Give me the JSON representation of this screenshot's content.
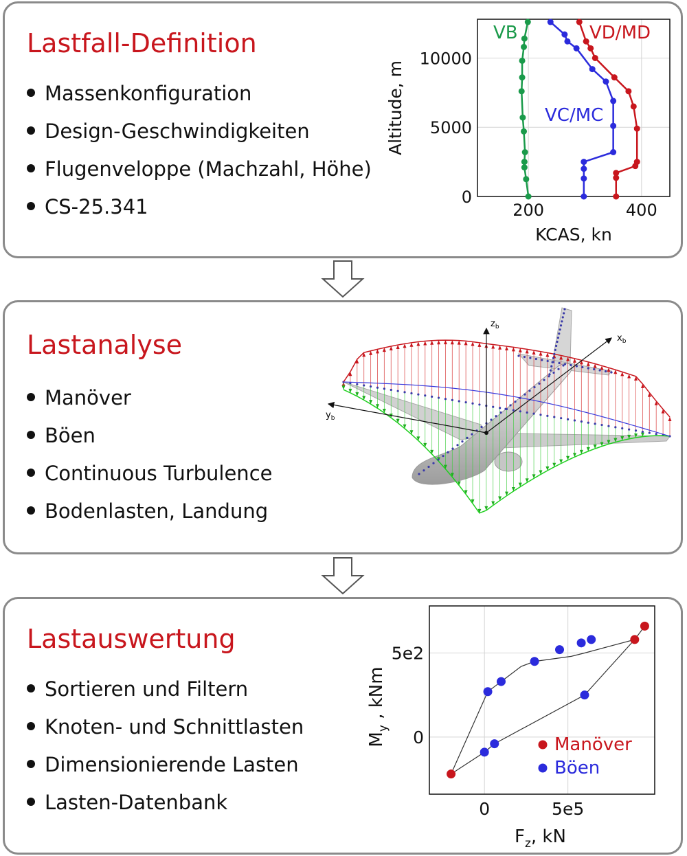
{
  "panels": [
    {
      "title": "Lastfall-Definition",
      "items": [
        "Massenkonfiguration",
        "Design-Geschwindigkeiten",
        "Flugenveloppe (Machzahl, Höhe)",
        "CS-25.341"
      ]
    },
    {
      "title": "Lastanalyse",
      "items": [
        "Manöver",
        "Böen",
        "Continuous Turbulence",
        "Bodenlasten, Landung"
      ]
    },
    {
      "title": "Lastauswertung",
      "items": [
        "Sortieren und Filtern",
        "Knoten- und Schnittlasten",
        "Dimensionierende Lasten",
        "Lasten-Datenbank"
      ]
    }
  ],
  "colors": {
    "title": "#c8161d",
    "green": "#1a9a4a",
    "blue": "#2b2bdc",
    "red": "#c8161d",
    "frame": "#8a8a8a"
  },
  "diagram_axes": {
    "x": "x",
    "x_sub": "b",
    "y": "y",
    "y_sub": "b",
    "z": "z",
    "z_sub": "b"
  },
  "chart_data": [
    {
      "type": "line",
      "xlabel": "KCAS, kn",
      "ylabel": "Altitude, m",
      "xlim": [
        110,
        450
      ],
      "ylim": [
        0,
        12800
      ],
      "xticks": [
        200,
        400
      ],
      "yticks": [
        0,
        5000,
        10000
      ],
      "grid": true,
      "series": [
        {
          "name": "VB",
          "color": "#1a9a4a",
          "points": [
            [
              200,
              0
            ],
            [
              196,
              1250
            ],
            [
              193,
              2100
            ],
            [
              193,
              2500
            ],
            [
              194,
              3200
            ],
            [
              192,
              4700
            ],
            [
              190,
              5700
            ],
            [
              188,
              7600
            ],
            [
              189,
              8600
            ],
            [
              189,
              9800
            ],
            [
              192,
              10800
            ],
            [
              193,
              11400
            ],
            [
              199,
              12600
            ]
          ]
        },
        {
          "name": "VC/MC",
          "color": "#2b2bdc",
          "points": [
            [
              298,
              0
            ],
            [
              298,
              1300
            ],
            [
              298,
              2000
            ],
            [
              298,
              2500
            ],
            [
              350,
              3200
            ],
            [
              350,
              5100
            ],
            [
              350,
              6900
            ],
            [
              337,
              8300
            ],
            [
              313,
              9200
            ],
            [
              285,
              10700
            ],
            [
              269,
              11200
            ],
            [
              264,
              11700
            ],
            [
              239,
              12600
            ]
          ]
        },
        {
          "name": "VD/MD",
          "color": "#c8161d",
          "points": [
            [
              355,
              0
            ],
            [
              355,
              1350
            ],
            [
              355,
              1700
            ],
            [
              389,
              2200
            ],
            [
              392,
              2500
            ],
            [
              392,
              4900
            ],
            [
              386,
              6500
            ],
            [
              377,
              7600
            ],
            [
              352,
              8600
            ],
            [
              318,
              10000
            ],
            [
              310,
              10700
            ],
            [
              302,
              11200
            ],
            [
              290,
              12600
            ]
          ]
        }
      ]
    },
    {
      "type": "scatter",
      "xlabel": "F",
      "xlabel_sub": "z",
      "xlabel_unit": ", kN",
      "ylabel": "M",
      "ylabel_sub": "y",
      "ylabel_unit": " , kNm",
      "xlim": [
        -330000,
        1020000
      ],
      "ylim": [
        -340,
        780
      ],
      "xticks": [
        [
          0,
          "0"
        ],
        [
          500000,
          "5e5"
        ]
      ],
      "yticks": [
        [
          0,
          "0"
        ],
        [
          500,
          "5e2"
        ]
      ],
      "grid": true,
      "legend": "bottom-right",
      "envelope": [
        [
          -200000,
          -220
        ],
        [
          0,
          -90
        ],
        [
          60000,
          -40
        ],
        [
          600000,
          250
        ],
        [
          900000,
          580
        ],
        [
          960000,
          660
        ],
        [
          960000,
          660
        ],
        [
          900000,
          580
        ],
        [
          600000,
          500
        ],
        [
          520000,
          480
        ],
        [
          300000,
          450
        ],
        [
          220000,
          420
        ],
        [
          100000,
          330
        ],
        [
          60000,
          300
        ],
        [
          20000,
          270
        ],
        [
          -200000,
          -220
        ]
      ],
      "series": [
        {
          "name": "Manöver",
          "color": "#c8161d",
          "points": [
            [
              -200000,
              -220
            ],
            [
              900000,
              580
            ],
            [
              960000,
              660
            ]
          ]
        },
        {
          "name": "Böen",
          "color": "#2b2bdc",
          "points": [
            [
              20000,
              270
            ],
            [
              100000,
              330
            ],
            [
              300000,
              450
            ],
            [
              450000,
              520
            ],
            [
              580000,
              560
            ],
            [
              640000,
              580
            ],
            [
              0,
              -90
            ],
            [
              60000,
              -40
            ],
            [
              600000,
              250
            ]
          ]
        }
      ]
    }
  ]
}
